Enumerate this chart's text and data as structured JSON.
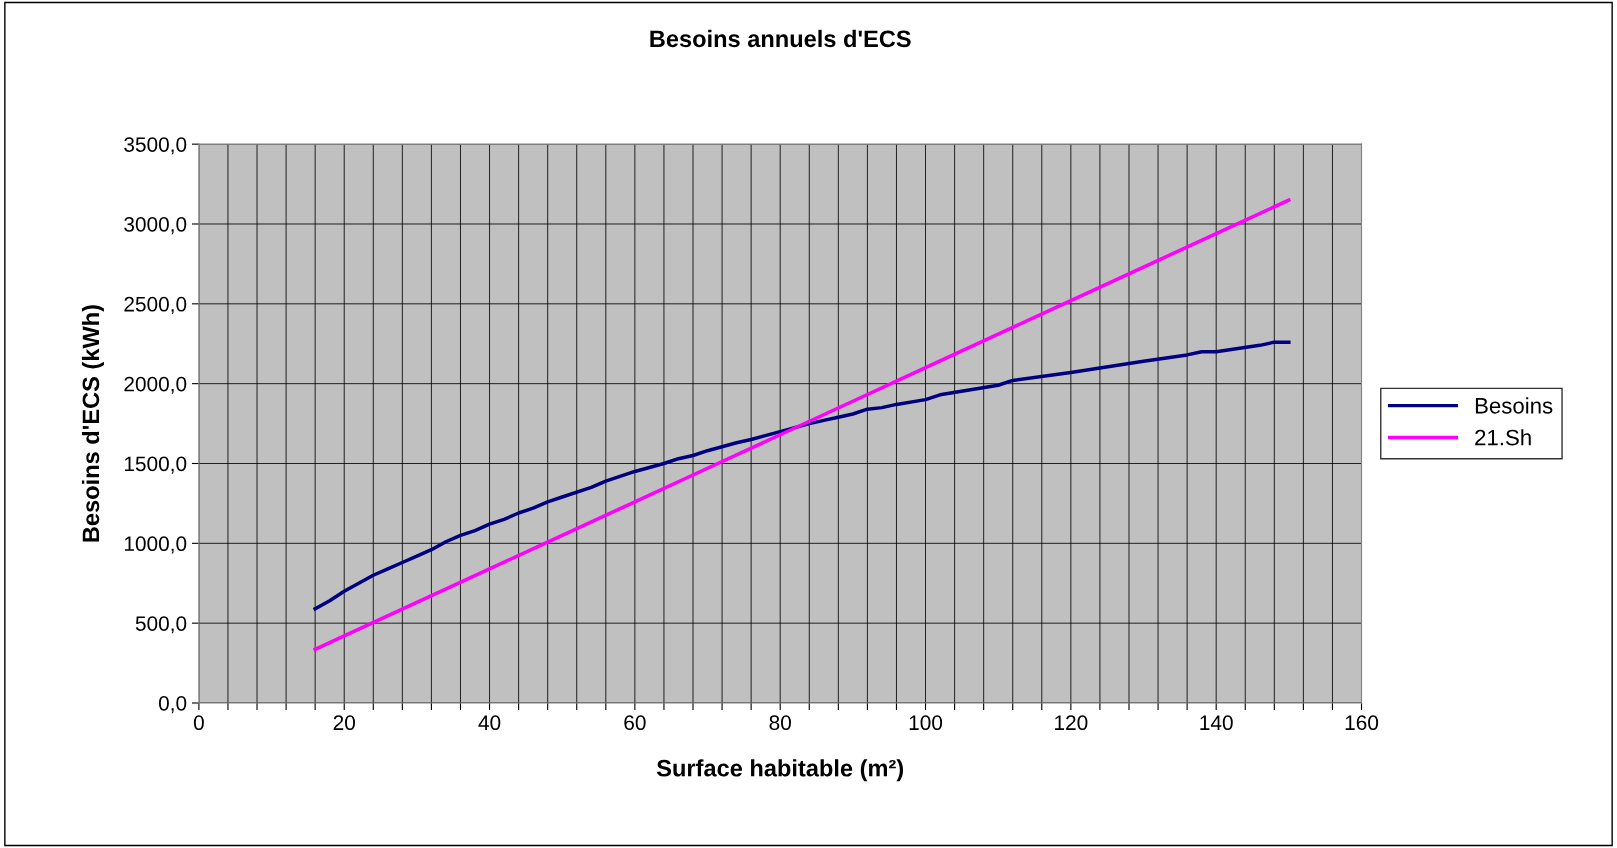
{
  "chart_data": {
    "type": "line",
    "title": "Besoins annuels d'ECS",
    "xlabel": "Surface habitable (m²)",
    "ylabel": "Besoins d'ECS (kWh)",
    "series": [
      {
        "name": "Besoins",
        "color": "#000080",
        "x": [
          16,
          18,
          20,
          22,
          24,
          26,
          28,
          30,
          32,
          34,
          36,
          38,
          40,
          42,
          44,
          46,
          48,
          50,
          54,
          56,
          60,
          64,
          66,
          68,
          70,
          74,
          76,
          80,
          84,
          86,
          88,
          90,
          92,
          94,
          96,
          100,
          102,
          110,
          112,
          120,
          130,
          136,
          138,
          140,
          146,
          148,
          150
        ],
        "values": [
          590,
          640,
          700,
          750,
          800,
          840,
          880,
          920,
          960,
          1010,
          1050,
          1080,
          1120,
          1150,
          1190,
          1220,
          1260,
          1290,
          1350,
          1390,
          1450,
          1500,
          1530,
          1550,
          1580,
          1630,
          1650,
          1700,
          1750,
          1770,
          1790,
          1810,
          1840,
          1850,
          1870,
          1900,
          1930,
          1990,
          2020,
          2070,
          2140,
          2180,
          2200,
          2200,
          2240,
          2260,
          2260
        ]
      },
      {
        "name": "21.Sh",
        "color": "#ff00ff",
        "x": [
          16,
          20,
          30,
          40,
          50,
          60,
          70,
          80,
          90,
          100,
          110,
          120,
          130,
          140,
          150
        ],
        "values": [
          336,
          420,
          630,
          840,
          1050,
          1260,
          1470,
          1680,
          1890,
          2100,
          2310,
          2520,
          2730,
          2940,
          3150
        ]
      }
    ],
    "xlim": [
      0,
      160
    ],
    "xticks": [
      0,
      {
        "value": 4,
        "label": null
      },
      {
        "value": 8,
        "label": null
      },
      {
        "value": 12,
        "label": null
      },
      {
        "value": 16,
        "label": null
      },
      20,
      {
        "value": 24,
        "label": null
      },
      {
        "value": 28,
        "label": null
      },
      {
        "value": 32,
        "label": null
      },
      {
        "value": 36,
        "label": null
      },
      40,
      {
        "value": 44,
        "label": null
      },
      {
        "value": 48,
        "label": null
      },
      {
        "value": 52,
        "label": null
      },
      {
        "value": 56,
        "label": null
      },
      60,
      {
        "value": 64,
        "label": null
      },
      {
        "value": 68,
        "label": null
      },
      {
        "value": 72,
        "label": null
      },
      {
        "value": 76,
        "label": null
      },
      80,
      {
        "value": 84,
        "label": null
      },
      {
        "value": 88,
        "label": null
      },
      {
        "value": 92,
        "label": null
      },
      {
        "value": 96,
        "label": null
      },
      100,
      {
        "value": 104,
        "label": null
      },
      {
        "value": 108,
        "label": null
      },
      {
        "value": 112,
        "label": null
      },
      {
        "value": 116,
        "label": null
      },
      120,
      {
        "value": 124,
        "label": null
      },
      {
        "value": 128,
        "label": null
      },
      {
        "value": 132,
        "label": null
      },
      {
        "value": 136,
        "label": null
      },
      140,
      {
        "value": 144,
        "label": null
      },
      {
        "value": 148,
        "label": null
      },
      {
        "value": 152,
        "label": null
      },
      {
        "value": 156,
        "label": null
      },
      160
    ],
    "ylim": [
      0,
      3500
    ],
    "yticks": [
      {
        "value": 0,
        "label": "0,0"
      },
      {
        "value": 500,
        "label": "500,0"
      },
      {
        "value": 1000,
        "label": "1000,0"
      },
      {
        "value": 1500,
        "label": "1500,0"
      },
      {
        "value": 2000,
        "label": "2000,0"
      },
      {
        "value": 2500,
        "label": "2500,0"
      },
      {
        "value": 3000,
        "label": "3000,0"
      },
      {
        "value": 3500,
        "label": "3500,0"
      }
    ],
    "grid": true,
    "legend": "right",
    "marker": "none",
    "line_style": "solid"
  }
}
